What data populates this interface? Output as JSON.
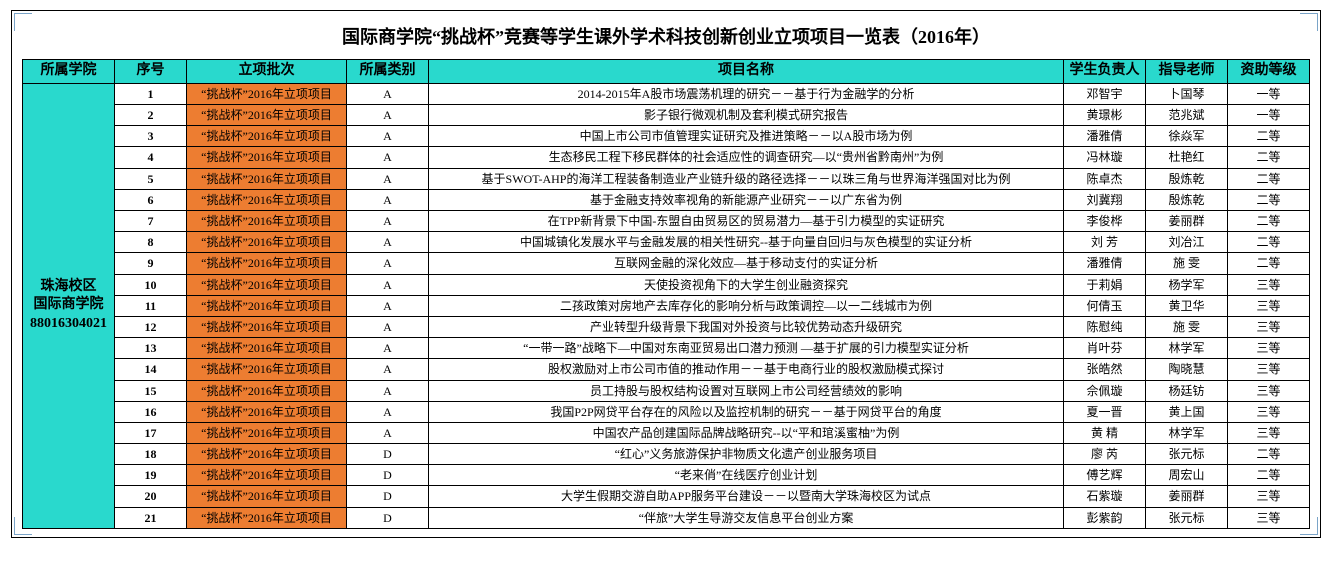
{
  "title": "国际商学院“挑战杯”竞赛等学生课外学术科技创新创业立项项目一览表（2016年）",
  "title_fontsize": 18,
  "columns": [
    "所属学院",
    "序号",
    "立项批次",
    "所属类别",
    "项目名称",
    "学生负责人",
    "指导老师",
    "资助等级"
  ],
  "colors": {
    "header_bg": "#29d9cd",
    "batch_bg": "#ed7d31",
    "college_bg": "#29d9cd",
    "row_fontsize": 12,
    "header_fontsize": 14
  },
  "college_cell": "珠海校区\n国际商学院\n88016304021",
  "rows": [
    {
      "no": "1",
      "batch": "“挑战杯”2016年立项项目",
      "cat": "A",
      "name": "2014-2015年A股市场震荡机理的研究－－基于行为金融学的分析",
      "leader": "邓智宇",
      "teacher": "卜国琴",
      "grade": "一等"
    },
    {
      "no": "2",
      "batch": "“挑战杯”2016年立项项目",
      "cat": "A",
      "name": "影子银行微观机制及套利模式研究报告",
      "leader": "黄璟彬",
      "teacher": "范兆斌",
      "grade": "一等"
    },
    {
      "no": "3",
      "batch": "“挑战杯”2016年立项项目",
      "cat": "A",
      "name": "中国上市公司市值管理实证研究及推进策略－－以A股市场为例",
      "leader": "潘雅倩",
      "teacher": "徐焱军",
      "grade": "二等"
    },
    {
      "no": "4",
      "batch": "“挑战杯”2016年立项项目",
      "cat": "A",
      "name": "生态移民工程下移民群体的社会适应性的调查研究—以“贵州省黔南州”为例",
      "leader": "冯林璇",
      "teacher": "杜艳红",
      "grade": "二等"
    },
    {
      "no": "5",
      "batch": "“挑战杯”2016年立项项目",
      "cat": "A",
      "name": "基于SWOT-AHP的海洋工程装备制造业产业链升级的路径选择－－以珠三角与世界海洋强国对比为例",
      "leader": "陈卓杰",
      "teacher": "殷炼乾",
      "grade": "二等"
    },
    {
      "no": "6",
      "batch": "“挑战杯”2016年立项项目",
      "cat": "A",
      "name": "基于金融支持效率视角的新能源产业研究－－以广东省为例",
      "leader": "刘冀翔",
      "teacher": "殷炼乾",
      "grade": "二等"
    },
    {
      "no": "7",
      "batch": "“挑战杯”2016年立项项目",
      "cat": "A",
      "name": "在TPP新背景下中国-东盟自由贸易区的贸易潜力—基于引力模型的实证研究",
      "leader": "李俊桦",
      "teacher": "姜丽群",
      "grade": "二等"
    },
    {
      "no": "8",
      "batch": "“挑战杯”2016年立项项目",
      "cat": "A",
      "name": "中国城镇化发展水平与金融发展的相关性研究--基于向量自回归与灰色模型的实证分析",
      "leader": "刘 芳",
      "teacher": "刘冶江",
      "grade": "二等"
    },
    {
      "no": "9",
      "batch": "“挑战杯”2016年立项项目",
      "cat": "A",
      "name": "互联网金融的深化效应—基于移动支付的实证分析",
      "leader": "潘雅倩",
      "teacher": "施 雯",
      "grade": "二等"
    },
    {
      "no": "10",
      "batch": "“挑战杯”2016年立项项目",
      "cat": "A",
      "name": "天使投资视角下的大学生创业融资探究",
      "leader": "于莉娟",
      "teacher": "杨学军",
      "grade": "三等"
    },
    {
      "no": "11",
      "batch": "“挑战杯”2016年立项项目",
      "cat": "A",
      "name": "二孩政策对房地产去库存化的影响分析与政策调控—以一二线城市为例",
      "leader": "何倩玉",
      "teacher": "黄卫华",
      "grade": "三等"
    },
    {
      "no": "12",
      "batch": "“挑战杯”2016年立项项目",
      "cat": "A",
      "name": "产业转型升级背景下我国对外投资与比较优势动态升级研究",
      "leader": "陈慰纯",
      "teacher": "施 雯",
      "grade": "三等"
    },
    {
      "no": "13",
      "batch": "“挑战杯”2016年立项项目",
      "cat": "A",
      "name": "“一带一路”战略下—中国对东南亚贸易出口潜力预测 —基于扩展的引力模型实证分析",
      "leader": "肖叶芬",
      "teacher": "林学军",
      "grade": "三等"
    },
    {
      "no": "14",
      "batch": "“挑战杯”2016年立项项目",
      "cat": "A",
      "name": "股权激励对上市公司市值的推动作用－－基于电商行业的股权激励模式探讨",
      "leader": "张皓然",
      "teacher": "陶晓慧",
      "grade": "三等"
    },
    {
      "no": "15",
      "batch": "“挑战杯”2016年立项项目",
      "cat": "A",
      "name": "员工持股与股权结构设置对互联网上市公司经营绩效的影响",
      "leader": "佘佩璇",
      "teacher": "杨廷钫",
      "grade": "三等"
    },
    {
      "no": "16",
      "batch": "“挑战杯”2016年立项项目",
      "cat": "A",
      "name": "我国P2P网贷平台存在的风险以及监控机制的研究－－基于网贷平台的角度",
      "leader": "夏一晋",
      "teacher": "黄上国",
      "grade": "三等"
    },
    {
      "no": "17",
      "batch": "“挑战杯”2016年立项项目",
      "cat": "A",
      "name": "中国农产品创建国际品牌战略研究--以“平和琯溪蜜柚”为例",
      "leader": "黄 精",
      "teacher": "林学军",
      "grade": "三等"
    },
    {
      "no": "18",
      "batch": "“挑战杯”2016年立项项目",
      "cat": "D",
      "name": "“红心”义务旅游保护非物质文化遗产创业服务项目",
      "leader": "廖 芮",
      "teacher": "张元标",
      "grade": "二等"
    },
    {
      "no": "19",
      "batch": "“挑战杯”2016年立项项目",
      "cat": "D",
      "name": "“老来俏”在线医疗创业计划",
      "leader": "傅艺辉",
      "teacher": "周宏山",
      "grade": "二等"
    },
    {
      "no": "20",
      "batch": "“挑战杯”2016年立项项目",
      "cat": "D",
      "name": "大学生假期交游自助APP服务平台建设－－以暨南大学珠海校区为试点",
      "leader": "石紫璇",
      "teacher": "姜丽群",
      "grade": "三等"
    },
    {
      "no": "21",
      "batch": "“挑战杯”2016年立项项目",
      "cat": "D",
      "name": "“伴旅”大学生导游交友信息平台创业方案",
      "leader": "彭紫韵",
      "teacher": "张元标",
      "grade": "三等"
    }
  ]
}
